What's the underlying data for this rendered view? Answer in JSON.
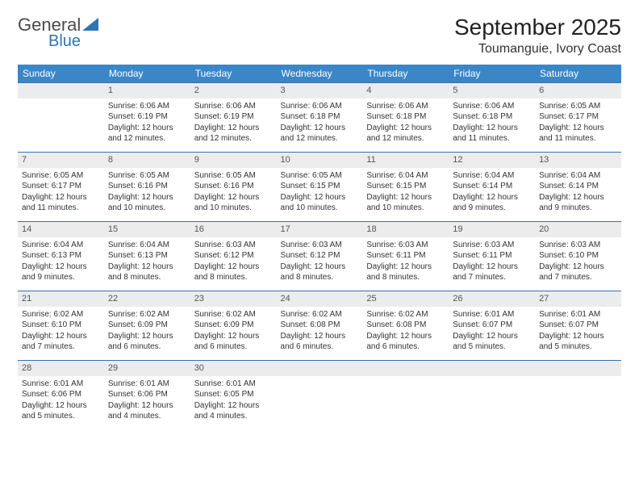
{
  "logo": {
    "word1": "General",
    "word2": "Blue",
    "brand_color": "#2f74b5"
  },
  "header": {
    "month_year": "September 2025",
    "location": "Toumanguie, Ivory Coast"
  },
  "calendar": {
    "type": "table",
    "header_bg": "#3b86c7",
    "header_text_color": "#ffffff",
    "row_divider_color": "#2f74b5",
    "daynum_bg": "#ececec",
    "text_color": "#333333",
    "day_headers": [
      "Sunday",
      "Monday",
      "Tuesday",
      "Wednesday",
      "Thursday",
      "Friday",
      "Saturday"
    ],
    "weeks": [
      [
        null,
        {
          "n": "1",
          "sunrise": "6:06 AM",
          "sunset": "6:19 PM",
          "daylight": "12 hours and 12 minutes."
        },
        {
          "n": "2",
          "sunrise": "6:06 AM",
          "sunset": "6:19 PM",
          "daylight": "12 hours and 12 minutes."
        },
        {
          "n": "3",
          "sunrise": "6:06 AM",
          "sunset": "6:18 PM",
          "daylight": "12 hours and 12 minutes."
        },
        {
          "n": "4",
          "sunrise": "6:06 AM",
          "sunset": "6:18 PM",
          "daylight": "12 hours and 12 minutes."
        },
        {
          "n": "5",
          "sunrise": "6:06 AM",
          "sunset": "6:18 PM",
          "daylight": "12 hours and 11 minutes."
        },
        {
          "n": "6",
          "sunrise": "6:05 AM",
          "sunset": "6:17 PM",
          "daylight": "12 hours and 11 minutes."
        }
      ],
      [
        {
          "n": "7",
          "sunrise": "6:05 AM",
          "sunset": "6:17 PM",
          "daylight": "12 hours and 11 minutes."
        },
        {
          "n": "8",
          "sunrise": "6:05 AM",
          "sunset": "6:16 PM",
          "daylight": "12 hours and 10 minutes."
        },
        {
          "n": "9",
          "sunrise": "6:05 AM",
          "sunset": "6:16 PM",
          "daylight": "12 hours and 10 minutes."
        },
        {
          "n": "10",
          "sunrise": "6:05 AM",
          "sunset": "6:15 PM",
          "daylight": "12 hours and 10 minutes."
        },
        {
          "n": "11",
          "sunrise": "6:04 AM",
          "sunset": "6:15 PM",
          "daylight": "12 hours and 10 minutes."
        },
        {
          "n": "12",
          "sunrise": "6:04 AM",
          "sunset": "6:14 PM",
          "daylight": "12 hours and 9 minutes."
        },
        {
          "n": "13",
          "sunrise": "6:04 AM",
          "sunset": "6:14 PM",
          "daylight": "12 hours and 9 minutes."
        }
      ],
      [
        {
          "n": "14",
          "sunrise": "6:04 AM",
          "sunset": "6:13 PM",
          "daylight": "12 hours and 9 minutes."
        },
        {
          "n": "15",
          "sunrise": "6:04 AM",
          "sunset": "6:13 PM",
          "daylight": "12 hours and 8 minutes."
        },
        {
          "n": "16",
          "sunrise": "6:03 AM",
          "sunset": "6:12 PM",
          "daylight": "12 hours and 8 minutes."
        },
        {
          "n": "17",
          "sunrise": "6:03 AM",
          "sunset": "6:12 PM",
          "daylight": "12 hours and 8 minutes."
        },
        {
          "n": "18",
          "sunrise": "6:03 AM",
          "sunset": "6:11 PM",
          "daylight": "12 hours and 8 minutes."
        },
        {
          "n": "19",
          "sunrise": "6:03 AM",
          "sunset": "6:11 PM",
          "daylight": "12 hours and 7 minutes."
        },
        {
          "n": "20",
          "sunrise": "6:03 AM",
          "sunset": "6:10 PM",
          "daylight": "12 hours and 7 minutes."
        }
      ],
      [
        {
          "n": "21",
          "sunrise": "6:02 AM",
          "sunset": "6:10 PM",
          "daylight": "12 hours and 7 minutes."
        },
        {
          "n": "22",
          "sunrise": "6:02 AM",
          "sunset": "6:09 PM",
          "daylight": "12 hours and 6 minutes."
        },
        {
          "n": "23",
          "sunrise": "6:02 AM",
          "sunset": "6:09 PM",
          "daylight": "12 hours and 6 minutes."
        },
        {
          "n": "24",
          "sunrise": "6:02 AM",
          "sunset": "6:08 PM",
          "daylight": "12 hours and 6 minutes."
        },
        {
          "n": "25",
          "sunrise": "6:02 AM",
          "sunset": "6:08 PM",
          "daylight": "12 hours and 6 minutes."
        },
        {
          "n": "26",
          "sunrise": "6:01 AM",
          "sunset": "6:07 PM",
          "daylight": "12 hours and 5 minutes."
        },
        {
          "n": "27",
          "sunrise": "6:01 AM",
          "sunset": "6:07 PM",
          "daylight": "12 hours and 5 minutes."
        }
      ],
      [
        {
          "n": "28",
          "sunrise": "6:01 AM",
          "sunset": "6:06 PM",
          "daylight": "12 hours and 5 minutes."
        },
        {
          "n": "29",
          "sunrise": "6:01 AM",
          "sunset": "6:06 PM",
          "daylight": "12 hours and 4 minutes."
        },
        {
          "n": "30",
          "sunrise": "6:01 AM",
          "sunset": "6:05 PM",
          "daylight": "12 hours and 4 minutes."
        },
        null,
        null,
        null,
        null
      ]
    ],
    "labels": {
      "sunrise": "Sunrise:",
      "sunset": "Sunset:",
      "daylight": "Daylight:"
    }
  }
}
